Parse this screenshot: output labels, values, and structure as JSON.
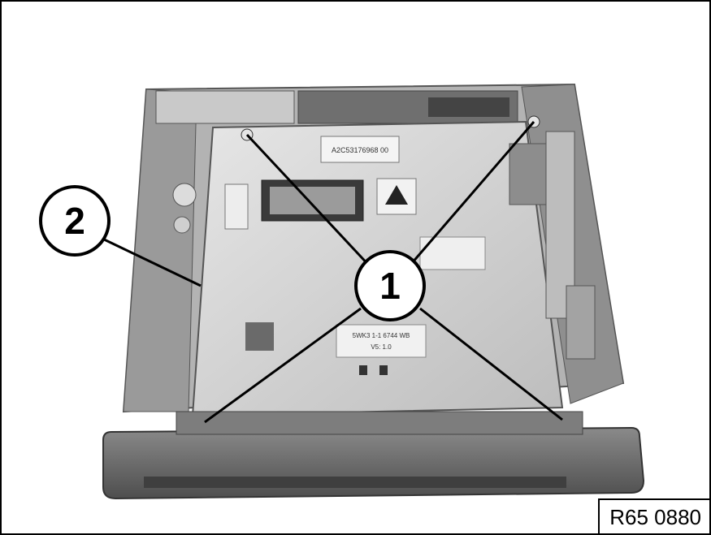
{
  "callouts": {
    "screws": "1",
    "frame": "2"
  },
  "labels": {
    "top_sticker": "A2C53176968 00",
    "center_sticker_line1": "5WK3 1-1 6744 WB",
    "center_sticker_line2": "V5: 1.0"
  },
  "reference_code": "R65 0880",
  "colors": {
    "housing_light": "#d6d6d6",
    "housing_mid": "#a9a9a9",
    "housing_dark": "#5f5f5f",
    "faceplate": "#6c6c6c",
    "leader_line": "#000000"
  }
}
